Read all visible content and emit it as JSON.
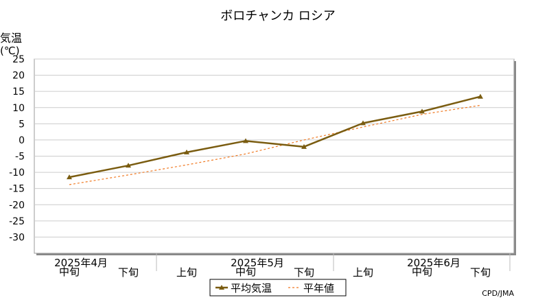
{
  "chart_data": {
    "type": "line",
    "title": "ボロチャンカ ロシア",
    "ylabel_line1": "気温",
    "ylabel_line2": "(℃)",
    "ylim": [
      -35,
      25
    ],
    "yticks": [
      25,
      20,
      15,
      10,
      5,
      0,
      -5,
      -10,
      -15,
      -20,
      -25,
      -30
    ],
    "x_periods": [
      "中旬",
      "下旬",
      "上旬",
      "中旬",
      "下旬",
      "上旬",
      "中旬",
      "下旬"
    ],
    "x_month_labels": [
      {
        "label": "2025年4月",
        "at_index": 0
      },
      {
        "label": "2025年5月",
        "at_index": 3
      },
      {
        "label": "2025年6月",
        "at_index": 6
      }
    ],
    "series": [
      {
        "name": "平均気温",
        "color": "#7a5c10",
        "marker": "triangle",
        "values": [
          -11.5,
          -7.9,
          -3.8,
          -0.3,
          -2.1,
          5.2,
          8.8,
          13.4
        ]
      },
      {
        "name": "平年値",
        "color": "#f07820",
        "style": "dashed",
        "values": [
          -13.8,
          -10.8,
          -7.7,
          -4.3,
          0.0,
          4.0,
          7.9,
          10.7
        ]
      }
    ],
    "grid": true,
    "legend_position": "bottom-center",
    "credit": "CPD/JMA"
  }
}
